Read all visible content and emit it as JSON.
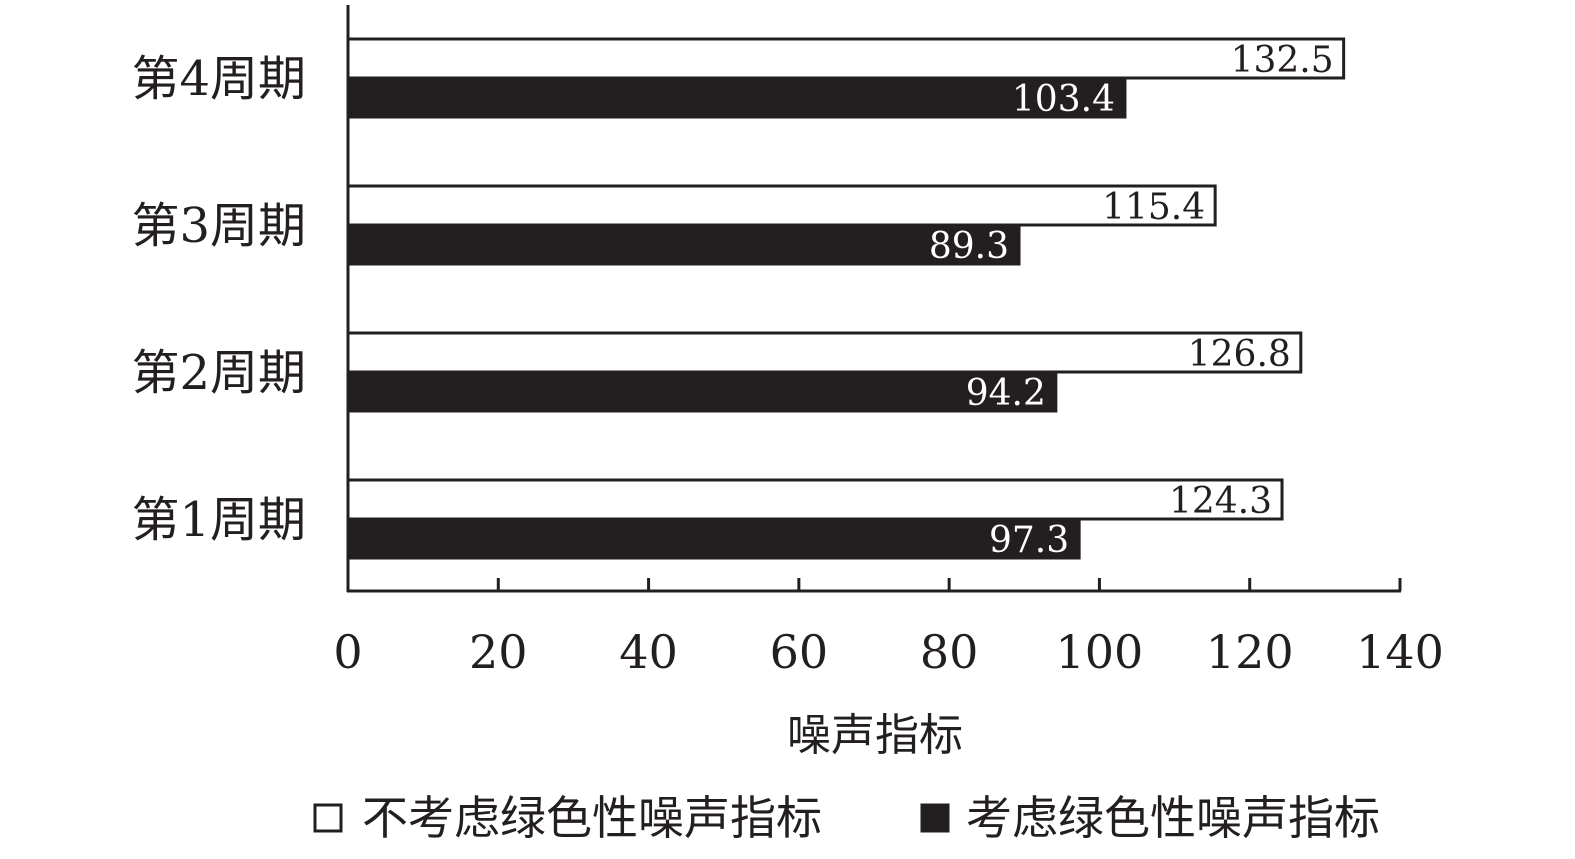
{
  "chart_data": {
    "type": "bar",
    "orientation": "horizontal",
    "categories": [
      "第1周期",
      "第2周期",
      "第3周期",
      "第4周期"
    ],
    "series": [
      {
        "name": "不考虑绿色性噪声指标",
        "values": [
          124.3,
          126.8,
          115.4,
          132.5
        ],
        "fill": "#ffffff",
        "stroke": "#231f20",
        "label_color": "#231f20"
      },
      {
        "name": "考虑绿色性噪声指标",
        "values": [
          97.3,
          94.2,
          89.3,
          103.4
        ],
        "fill": "#231f20",
        "stroke": "#231f20",
        "label_color": "#ffffff"
      }
    ],
    "data_labels": [
      [
        "124.3",
        "126.8",
        "115.4",
        "132.5"
      ],
      [
        "97.3",
        "94.2",
        "89.3",
        "103.4"
      ]
    ],
    "xlabel": "噪声指标",
    "ylabel": "",
    "xlim": [
      0,
      140
    ],
    "xticks": [
      0,
      20,
      40,
      60,
      80,
      100,
      120,
      140
    ],
    "xtick_labels": [
      "0",
      "20",
      "40",
      "60",
      "80",
      "100",
      "120",
      "140"
    ],
    "grid": false,
    "legend_position": "bottom"
  }
}
